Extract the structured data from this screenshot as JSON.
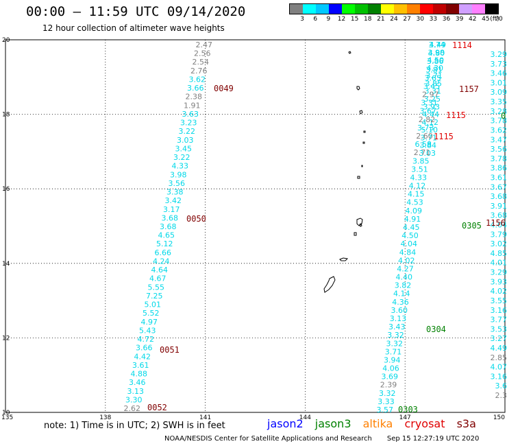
{
  "header": {
    "title": "00:00 – 11:59 UTC 09/14/2020",
    "subtitle": "12 hour collection of altimeter wave heights"
  },
  "color_legend": {
    "colors": [
      "#808080",
      "#00ffff",
      "#00c8ff",
      "#0000ff",
      "#00ff00",
      "#00c000",
      "#008000",
      "#ffff00",
      "#ffc000",
      "#ff8000",
      "#ff0000",
      "#c00000",
      "#800000",
      "#d0a0ff",
      "#ff80ff",
      "#000000"
    ],
    "labels": [
      "3",
      "6",
      "9",
      "12",
      "15",
      "18",
      "21",
      "24",
      "27",
      "30",
      "33",
      "36",
      "39",
      "42",
      "45",
      "70",
      "(ft)"
    ]
  },
  "map": {
    "lon_ticks": [
      "135",
      "138",
      "141",
      "144",
      "147",
      "150"
    ],
    "lat_ticks": [
      "20",
      "18",
      "16",
      "14",
      "12",
      "10"
    ],
    "passes": [
      {
        "label": "0049",
        "color": "#800000"
      },
      {
        "label": "0050",
        "color": "#800000"
      },
      {
        "label": "0051",
        "color": "#800000"
      },
      {
        "label": "0052",
        "color": "#800000"
      },
      {
        "label": "1114",
        "color": "#e00000"
      },
      {
        "label": "1157",
        "color": "#800000"
      },
      {
        "label": "1115",
        "color": "#e00000"
      },
      {
        "label": "1115",
        "color": "#e00000"
      },
      {
        "label": "0305",
        "color": "#008000"
      },
      {
        "label": "1156",
        "color": "#800000"
      },
      {
        "label": "0304",
        "color": "#008000"
      },
      {
        "label": "0303",
        "color": "#008000"
      },
      {
        "label": "0",
        "color": "#008000"
      }
    ],
    "track_a": [
      "2.47",
      "2.56",
      "2.54",
      "2.76",
      "3.62",
      "3.66",
      "2.38",
      "1.91",
      "3.63",
      "3.23",
      "3.22",
      "3.03",
      "3.45",
      "3.22",
      "4.33",
      "3.98",
      "3.56",
      "3.38",
      "3.42",
      "3.17",
      "3.68",
      "3.68",
      "4.65",
      "5.12",
      "6.66",
      "4.24",
      "4.64",
      "4.67",
      "5.55",
      "7.25",
      "5.01",
      "5.52",
      "4.97",
      "5.43",
      "4.72",
      "3.66",
      "4.42",
      "3.61",
      "4.88",
      "3.46",
      "3.13",
      "3.30",
      "2.62"
    ],
    "track_b": [
      "3.74",
      "3.98",
      "4.50",
      "4.30",
      "3.71",
      "3.85",
      "3.31",
      "3.25",
      "3.93",
      "4.44",
      "4.12",
      "5.10",
      "3.71",
      "3.84",
      "3.03"
    ],
    "track_c": [
      "4.49",
      "4.80",
      "3.86",
      "3.81",
      "3.65",
      "3.45",
      "2.97",
      "3.31",
      "3.67",
      "2.82",
      "3.73",
      "2.60",
      "6.58",
      "2.71",
      "3.85",
      "3.51",
      "4.33",
      "4.12",
      "4.15",
      "4.53",
      "4.09",
      "4.91",
      "4.45",
      "4.50",
      "4.04",
      "4.84",
      "4.02",
      "4.27",
      "4.40",
      "3.82",
      "4.14",
      "4.36",
      "3.60",
      "3.13",
      "3.43",
      "3.32",
      "3.32",
      "3.71",
      "3.94",
      "4.06",
      "3.69",
      "2.39",
      "3.32",
      "3.33",
      "3.57"
    ],
    "track_d": [
      "3.29",
      "3.73",
      "3.46",
      "3.01",
      "3.09",
      "3.35",
      "3.28",
      "3.78",
      "3.62",
      "3.47",
      "3.56",
      "3.78",
      "3.86",
      "3.61",
      "3.67",
      "3.68",
      "3.91",
      "3.68",
      "4.04",
      "3.79",
      "3.02",
      "4.85",
      "4.01",
      "3.29",
      "3.93",
      "4.02",
      "3.55",
      "3.16",
      "3.77",
      "3.53",
      "3.27",
      "4.49",
      "2.85",
      "4.07",
      "3.16",
      "3.6",
      "2.3"
    ],
    "islands": [
      "island",
      "island",
      "island",
      "island",
      "island",
      "island",
      "island",
      "island",
      "island",
      "island",
      "island",
      "island"
    ]
  },
  "note": "note:  1) Time is in UTC;  2) SWH is in feet",
  "satellites": [
    {
      "name": "jason2",
      "color": "#0000ff"
    },
    {
      "name": "jason3",
      "color": "#008000"
    },
    {
      "name": "altika",
      "color": "#ff8000"
    },
    {
      "name": "cryosat",
      "color": "#e00000"
    },
    {
      "name": "s3a",
      "color": "#800000"
    }
  ],
  "credit": "NOAA/NESDIS Center for Satellite Applications and Research",
  "timestamp": "Sep 15 12:27:19 UTC 2020"
}
